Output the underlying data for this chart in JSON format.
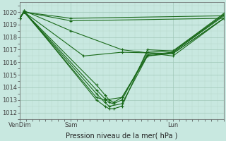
{
  "title": "",
  "xlabel": "Pression niveau de la mer( hPa )",
  "ylabel": "",
  "bg_color": "#c8e8e0",
  "grid_color_major": "#a0c8b8",
  "grid_color_minor": "#b8d8cc",
  "line_color": "#1a6a1a",
  "marker": "+",
  "ylim": [
    1011.5,
    1020.8
  ],
  "yticks": [
    1012,
    1013,
    1014,
    1015,
    1016,
    1017,
    1018,
    1019,
    1020
  ],
  "xtick_positions": [
    0,
    48,
    144
  ],
  "xtick_labels": [
    "VenDim",
    "Sam",
    "Lun"
  ],
  "xlim": [
    0,
    192
  ],
  "series": [
    [
      [
        0,
        1019.5
      ],
      [
        4,
        1020.0
      ],
      [
        48,
        1019.5
      ],
      [
        192,
        1019.7
      ]
    ],
    [
      [
        0,
        1019.5
      ],
      [
        4,
        1020.0
      ],
      [
        48,
        1019.3
      ],
      [
        192,
        1019.5
      ]
    ],
    [
      [
        0,
        1019.5
      ],
      [
        4,
        1020.1
      ],
      [
        48,
        1018.5
      ],
      [
        96,
        1017.0
      ],
      [
        144,
        1016.5
      ],
      [
        192,
        1019.5
      ]
    ],
    [
      [
        0,
        1019.5
      ],
      [
        4,
        1020.0
      ],
      [
        60,
        1016.5
      ],
      [
        96,
        1016.8
      ],
      [
        144,
        1016.7
      ],
      [
        192,
        1019.5
      ]
    ],
    [
      [
        0,
        1019.5
      ],
      [
        4,
        1020.0
      ],
      [
        72,
        1013.2
      ],
      [
        80,
        1013.0
      ],
      [
        96,
        1013.2
      ],
      [
        120,
        1016.5
      ],
      [
        144,
        1016.7
      ],
      [
        192,
        1019.5
      ]
    ],
    [
      [
        0,
        1019.5
      ],
      [
        4,
        1020.0
      ],
      [
        72,
        1013.5
      ],
      [
        80,
        1012.8
      ],
      [
        84,
        1012.5
      ],
      [
        96,
        1012.7
      ],
      [
        120,
        1016.5
      ],
      [
        144,
        1016.8
      ],
      [
        192,
        1019.8
      ]
    ],
    [
      [
        0,
        1019.5
      ],
      [
        4,
        1020.1
      ],
      [
        72,
        1013.0
      ],
      [
        80,
        1012.5
      ],
      [
        84,
        1012.3
      ],
      [
        88,
        1012.3
      ],
      [
        96,
        1012.5
      ],
      [
        120,
        1017.0
      ],
      [
        144,
        1016.9
      ],
      [
        192,
        1019.9
      ]
    ],
    [
      [
        0,
        1019.5
      ],
      [
        4,
        1020.0
      ],
      [
        72,
        1013.8
      ],
      [
        80,
        1013.1
      ],
      [
        84,
        1012.8
      ],
      [
        88,
        1012.7
      ],
      [
        96,
        1013.0
      ],
      [
        120,
        1016.8
      ],
      [
        144,
        1016.9
      ],
      [
        192,
        1019.8
      ]
    ],
    [
      [
        0,
        1019.5
      ],
      [
        4,
        1020.0
      ],
      [
        72,
        1014.2
      ],
      [
        80,
        1013.4
      ],
      [
        84,
        1013.0
      ],
      [
        88,
        1012.8
      ],
      [
        96,
        1013.2
      ],
      [
        120,
        1016.6
      ],
      [
        144,
        1016.8
      ],
      [
        192,
        1019.7
      ]
    ]
  ],
  "line_alpha": 1.0,
  "linewidth": 0.8,
  "markersize": 3,
  "markevery": 1
}
